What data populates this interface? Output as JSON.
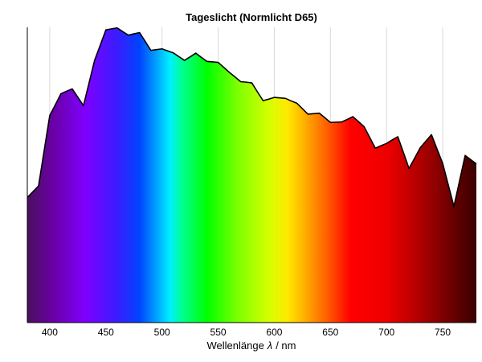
{
  "chart_data": {
    "type": "area",
    "title": "Tageslicht (Normlicht D65)",
    "xlabel_text": "Wellenlänge",
    "xlabel_symbol": "λ",
    "xlabel_unit": "/ nm",
    "ylabel": "",
    "xlim": [
      380,
      780
    ],
    "ylim": [
      0,
      118
    ],
    "x_ticks": [
      400,
      450,
      500,
      550,
      600,
      650,
      700,
      750
    ],
    "grid": "vertical",
    "series": [
      {
        "x": [
          380,
          385,
          390,
          395,
          400,
          405,
          410,
          415,
          420,
          425,
          430,
          435,
          440,
          445,
          450,
          455,
          460,
          465,
          470,
          475,
          480,
          485,
          490,
          495,
          500,
          505,
          510,
          515,
          520,
          525,
          530,
          535,
          540,
          545,
          550,
          555,
          560,
          565,
          570,
          575,
          580,
          585,
          590,
          595,
          600,
          605,
          610,
          615,
          620,
          625,
          630,
          635,
          640,
          645,
          650,
          655,
          660,
          665,
          670,
          675,
          680,
          685,
          690,
          695,
          700,
          705,
          710,
          715,
          720,
          725,
          730,
          735,
          740,
          745,
          750,
          755,
          760,
          765,
          770,
          775,
          780
        ],
        "y": [
          50.0,
          52.3,
          54.6,
          68.7,
          82.8,
          87.1,
          91.5,
          92.5,
          93.4,
          90.1,
          86.7,
          95.8,
          104.9,
          110.9,
          117.0,
          117.4,
          117.8,
          116.3,
          114.9,
          115.4,
          115.9,
          112.4,
          108.8,
          109.1,
          109.4,
          108.6,
          107.8,
          106.3,
          104.8,
          106.2,
          107.7,
          106.0,
          104.4,
          104.2,
          104.0,
          102.0,
          100.0,
          98.2,
          96.3,
          96.1,
          95.8,
          92.2,
          88.7,
          89.3,
          90.0,
          89.8,
          89.6,
          88.6,
          87.7,
          85.5,
          83.3,
          83.5,
          83.7,
          81.9,
          80.0,
          80.1,
          80.2,
          81.2,
          82.3,
          80.3,
          78.3,
          74.0,
          69.7,
          70.7,
          71.6,
          73.0,
          74.3,
          68.0,
          61.6,
          65.7,
          69.9,
          72.5,
          75.1,
          69.3,
          63.6,
          55.0,
          46.4,
          56.6,
          66.8,
          65.1,
          63.4
        ]
      }
    ]
  }
}
